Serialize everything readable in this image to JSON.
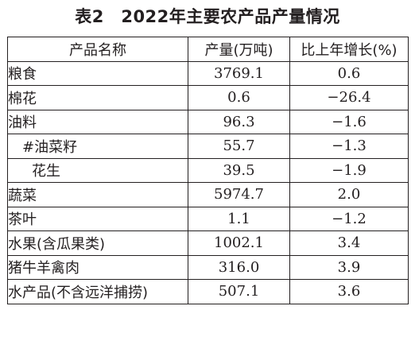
{
  "title": "表2　2022年主要农产品产量情况",
  "table": {
    "headers": [
      "产品名称",
      "产量(万吨)",
      "比上年增长(%)"
    ],
    "rows": [
      {
        "name": "粮食",
        "output": "3769.1",
        "growth": "0.6"
      },
      {
        "name": "棉花",
        "output": "0.6",
        "growth": "−26.4"
      },
      {
        "name": "油料",
        "output": "96.3",
        "growth": "−1.6"
      },
      {
        "name": "#油菜籽",
        "output": "55.7",
        "growth": "−1.3"
      },
      {
        "name": "花生",
        "output": "39.5",
        "growth": "−1.9"
      },
      {
        "name": "蔬菜",
        "output": "5974.7",
        "growth": "2.0"
      },
      {
        "name": "茶叶",
        "output": "1.1",
        "growth": "−1.2"
      },
      {
        "name": "水果(含瓜果类)",
        "output": "1002.1",
        "growth": "3.4"
      },
      {
        "name": "猪牛羊禽肉",
        "output": "316.0",
        "growth": "3.9"
      },
      {
        "name": "水产品(不含远洋捕捞)",
        "output": "507.1",
        "growth": "3.6"
      }
    ]
  }
}
